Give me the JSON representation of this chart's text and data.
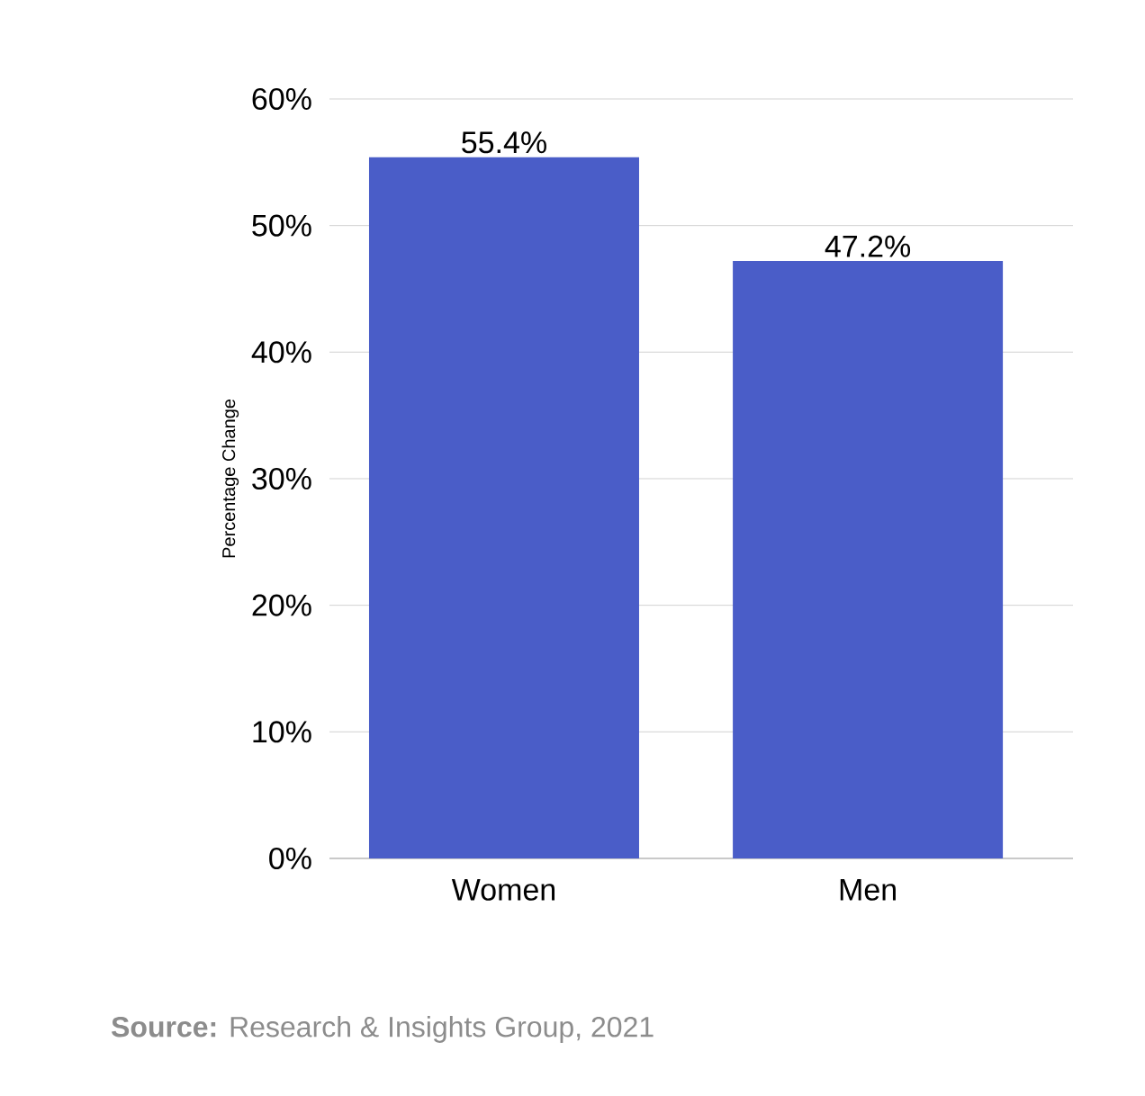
{
  "chart_data": {
    "type": "bar",
    "ylabel": "Percentage Change",
    "categories": [
      "Women",
      "Men"
    ],
    "values": [
      55.4,
      47.2
    ],
    "value_labels": [
      "55.4%",
      "47.2%"
    ],
    "color": "#4a5dc8",
    "ylim": [
      0,
      60
    ],
    "yticks": [
      {
        "value": 0,
        "label": "0%"
      },
      {
        "value": 10,
        "label": "10%"
      },
      {
        "value": 20,
        "label": "20%"
      },
      {
        "value": 30,
        "label": "30%"
      },
      {
        "value": 40,
        "label": "40%"
      },
      {
        "value": 50,
        "label": "50%"
      },
      {
        "value": 60,
        "label": "60%"
      }
    ],
    "grid": "y",
    "annotations": [
      "**Source:** Research & Insights Group, 2021"
    ]
  }
}
